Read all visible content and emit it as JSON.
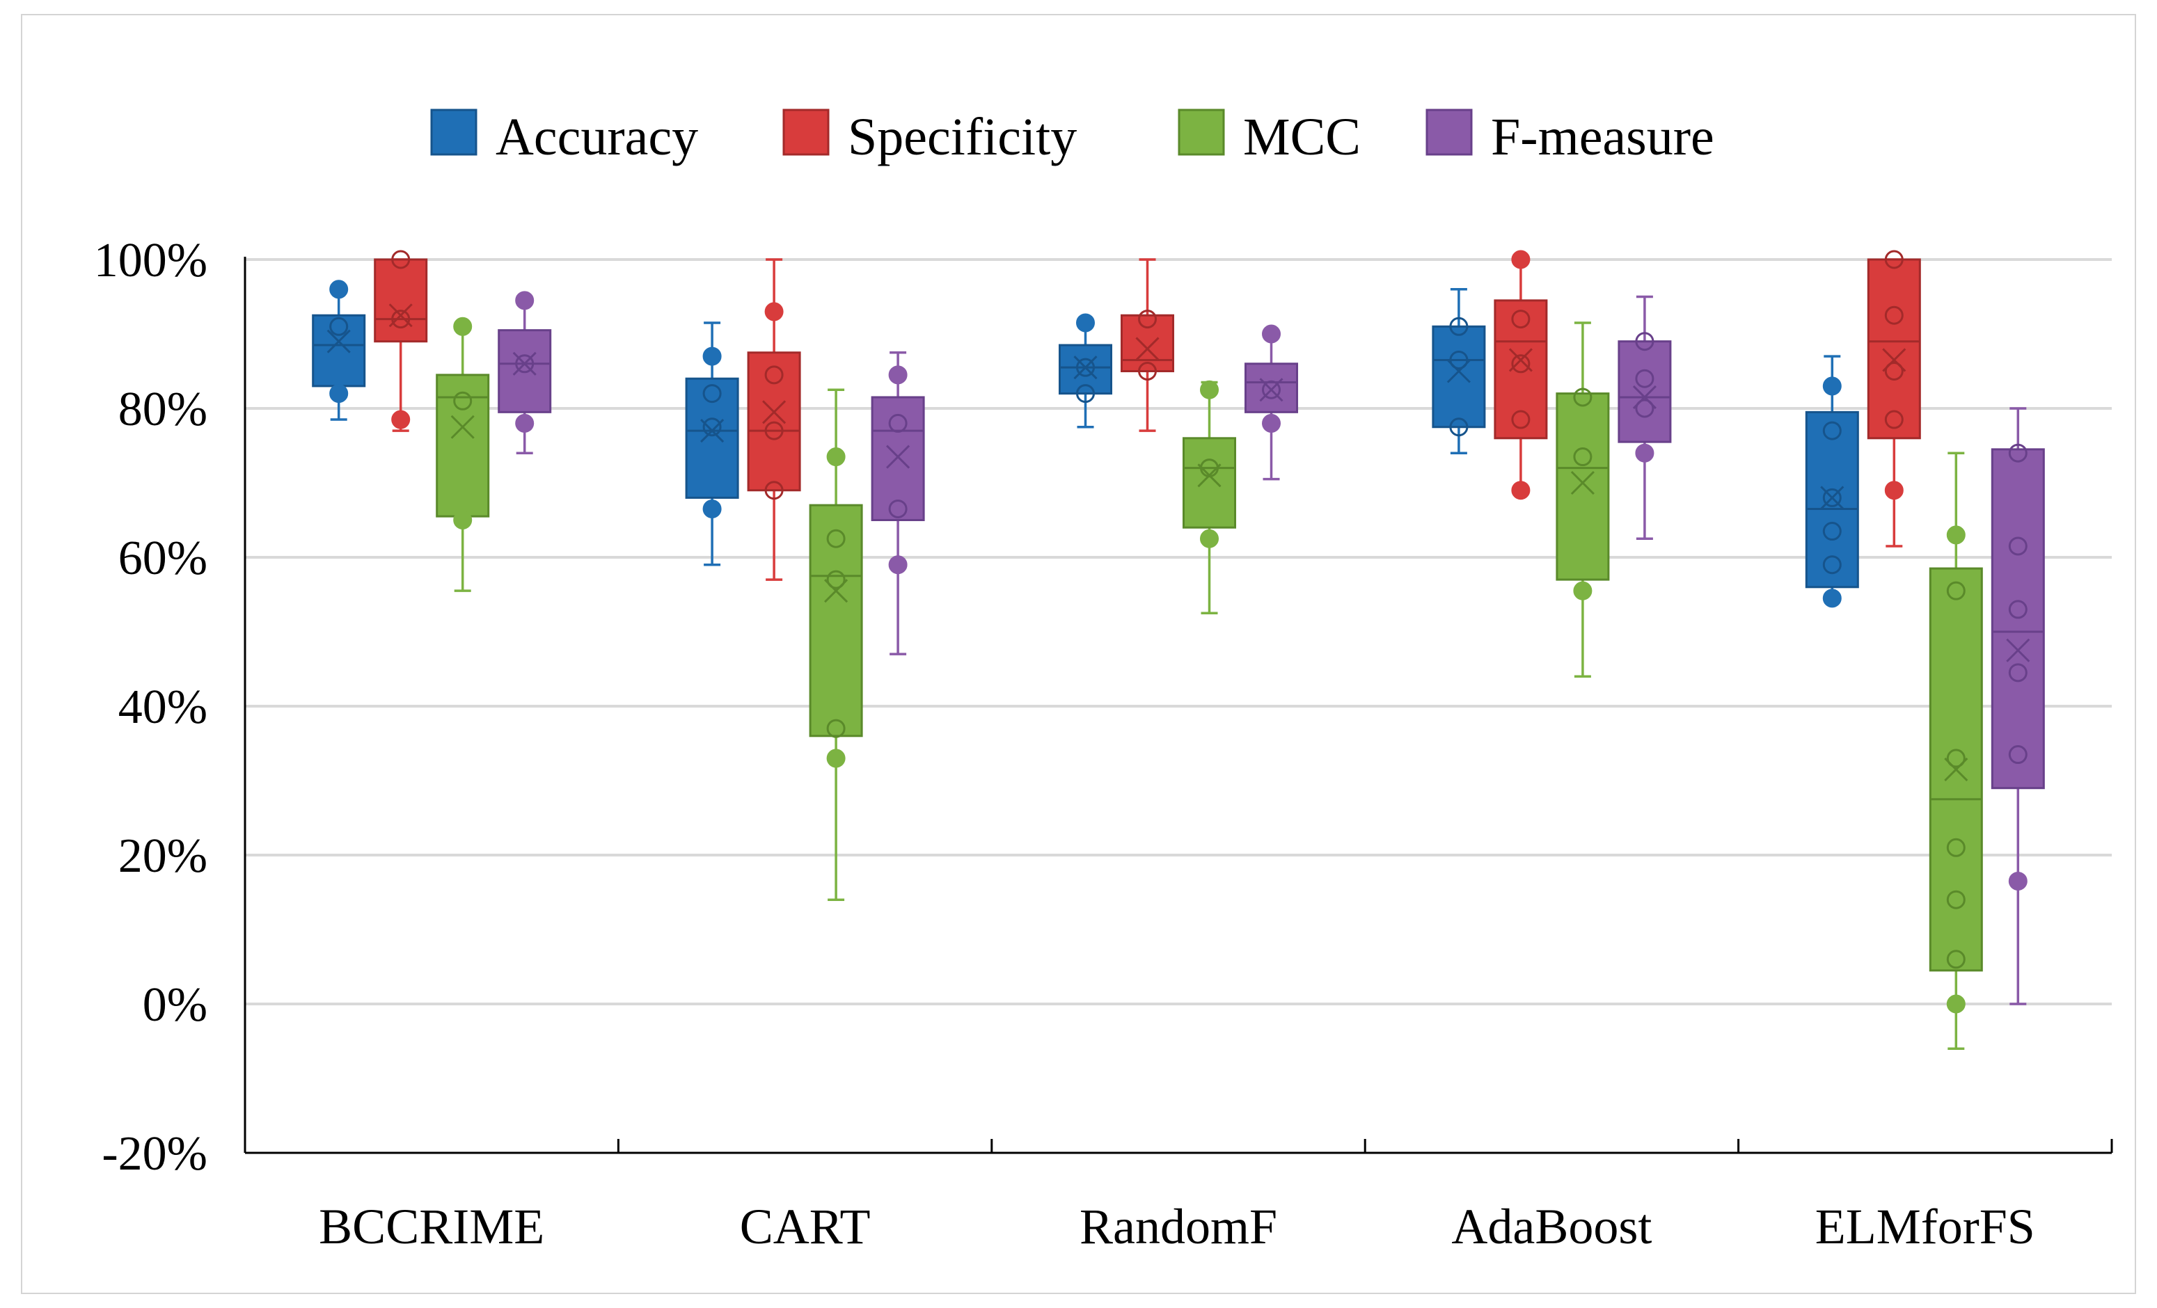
{
  "chart_data": {
    "type": "box",
    "title": "",
    "xlabel": "",
    "ylabel": "",
    "ylim": [
      -20,
      100
    ],
    "yticks": [
      100,
      80,
      60,
      40,
      20,
      0,
      -20
    ],
    "ytick_labels": [
      "100%",
      "80%",
      "60%",
      "40%",
      "20%",
      "0%",
      "-20%"
    ],
    "grid": true,
    "legend_position": "top",
    "categories": [
      "BCCRIME",
      "CART",
      "RandomF",
      "AdaBoost",
      "ELMforFS"
    ],
    "series": [
      {
        "name": "Accuracy",
        "color": "#1f6fb5",
        "stroke": "#16548c",
        "boxes": [
          {
            "min": 78.5,
            "q1": 83,
            "median": 88.5,
            "q3": 92.5,
            "max": 96,
            "mean": 89,
            "points": [
              96,
              91,
              82
            ]
          },
          {
            "min": 59,
            "q1": 68,
            "median": 77,
            "q3": 84,
            "max": 91.5,
            "mean": 77,
            "points": [
              87,
              82,
              77.5,
              66.5
            ]
          },
          {
            "min": 77.5,
            "q1": 82,
            "median": 85.5,
            "q3": 88.5,
            "max": 91.5,
            "mean": 85.5,
            "points": [
              91.5,
              85.5,
              82
            ]
          },
          {
            "min": 74,
            "q1": 77.5,
            "median": 86.5,
            "q3": 91,
            "max": 96,
            "mean": 85,
            "points": [
              91,
              86.5,
              77.5
            ]
          },
          {
            "min": 54.5,
            "q1": 56,
            "median": 66.5,
            "q3": 79.5,
            "max": 87,
            "mean": 68,
            "points": [
              83,
              77,
              68,
              63.5,
              59,
              54.5
            ]
          }
        ]
      },
      {
        "name": "Specificity",
        "color": "#d83c3c",
        "stroke": "#a32a2a",
        "boxes": [
          {
            "min": 77,
            "q1": 89,
            "median": 92,
            "q3": 100,
            "max": 100,
            "mean": 92.5,
            "points": [
              100,
              92,
              78.5
            ]
          },
          {
            "min": 57,
            "q1": 69,
            "median": 77,
            "q3": 87.5,
            "max": 100,
            "mean": 79.5,
            "points": [
              93,
              84.5,
              77,
              69
            ]
          },
          {
            "min": 77,
            "q1": 85,
            "median": 86.5,
            "q3": 92.5,
            "max": 100,
            "mean": 88,
            "points": [
              92,
              85
            ]
          },
          {
            "min": 69,
            "q1": 76,
            "median": 89,
            "q3": 94.5,
            "max": 100,
            "mean": 86.5,
            "points": [
              100,
              92,
              86,
              78.5,
              69
            ]
          },
          {
            "min": 61.5,
            "q1": 76,
            "median": 89,
            "q3": 100,
            "max": 100,
            "mean": 86.5,
            "points": [
              100,
              92.5,
              85,
              78.5,
              69
            ]
          }
        ]
      },
      {
        "name": "MCC",
        "color": "#7cb342",
        "stroke": "#5a8a2a",
        "boxes": [
          {
            "min": 55.5,
            "q1": 65.5,
            "median": 81.5,
            "q3": 84.5,
            "max": 91,
            "mean": 77.5,
            "points": [
              91,
              81,
              65
            ]
          },
          {
            "min": 14,
            "q1": 36,
            "median": 57.5,
            "q3": 67,
            "max": 82.5,
            "mean": 55.5,
            "points": [
              73.5,
              62.5,
              57,
              37,
              33
            ]
          },
          {
            "min": 52.5,
            "q1": 64,
            "median": 72,
            "q3": 76,
            "max": 83.5,
            "mean": 71,
            "points": [
              82.5,
              72,
              62.5
            ]
          },
          {
            "min": 44,
            "q1": 57,
            "median": 72,
            "q3": 82,
            "max": 91.5,
            "mean": 70,
            "points": [
              81.5,
              73.5,
              55.5
            ]
          },
          {
            "min": -6,
            "q1": 4.5,
            "median": 27.5,
            "q3": 58.5,
            "max": 74,
            "mean": 31.5,
            "points": [
              63,
              55.5,
              33,
              21,
              14,
              6,
              0
            ]
          }
        ]
      },
      {
        "name": "F-measure",
        "color": "#8a5aa8",
        "stroke": "#68408a",
        "boxes": [
          {
            "min": 74,
            "q1": 79.5,
            "median": 86,
            "q3": 90.5,
            "max": 94.5,
            "mean": 86,
            "points": [
              94.5,
              86,
              78
            ]
          },
          {
            "min": 47,
            "q1": 65,
            "median": 77,
            "q3": 81.5,
            "max": 87.5,
            "mean": 73.5,
            "points": [
              84.5,
              78,
              66.5,
              59
            ]
          },
          {
            "min": 70.5,
            "q1": 79.5,
            "median": 83.5,
            "q3": 86,
            "max": 90,
            "mean": 82.5,
            "points": [
              90,
              82.5,
              78
            ]
          },
          {
            "min": 62.5,
            "q1": 75.5,
            "median": 81.5,
            "q3": 89,
            "max": 95,
            "mean": 81.5,
            "points": [
              89,
              84,
              80,
              74
            ]
          },
          {
            "min": 0,
            "q1": 29,
            "median": 50,
            "q3": 74.5,
            "max": 80,
            "mean": 47.5,
            "points": [
              74,
              61.5,
              53,
              44.5,
              33.5,
              16.5
            ]
          }
        ]
      }
    ]
  }
}
